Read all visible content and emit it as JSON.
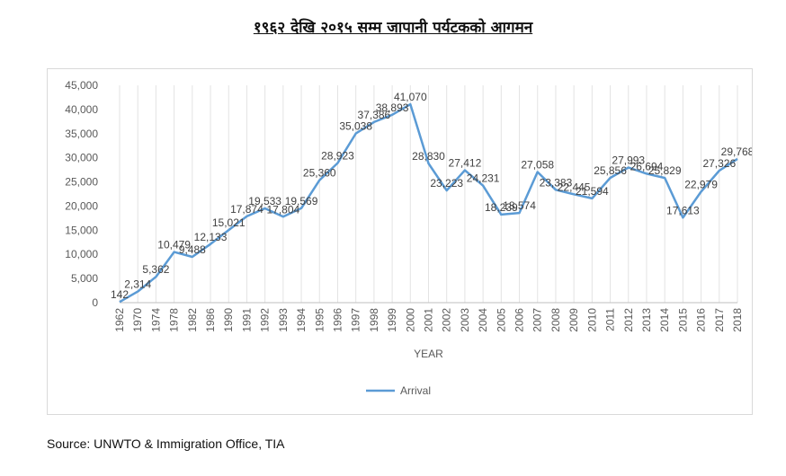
{
  "title": "१९६२ देखि २०१५ सम्म  जापानी पर्यटकको  आगमन",
  "source": "Source: UNWTO & Immigration Office, TIA",
  "chart_data": {
    "type": "line",
    "title": "",
    "xlabel": "YEAR",
    "ylabel": "",
    "ylim": [
      0,
      45000
    ],
    "yticks": [
      0,
      5000,
      10000,
      15000,
      20000,
      25000,
      30000,
      35000,
      40000,
      45000
    ],
    "ytick_labels": [
      "0",
      "5,000",
      "10,000",
      "15,000",
      "20,000",
      "25,000",
      "30,000",
      "35,000",
      "40,000",
      "45,000"
    ],
    "grid": "vertical",
    "legend": "bottom",
    "line_color": "#5b9bd5",
    "categories": [
      "1962",
      "1970",
      "1974",
      "1978",
      "1982",
      "1986",
      "1990",
      "1991",
      "1992",
      "1993",
      "1994",
      "1995",
      "1996",
      "1997",
      "1998",
      "1999",
      "2000",
      "2001",
      "2002",
      "2003",
      "2004",
      "2005",
      "2006",
      "2007",
      "2008",
      "2009",
      "2010",
      "2011",
      "2012",
      "2013",
      "2014",
      "2015",
      "2016",
      "2017",
      "2018"
    ],
    "series": [
      {
        "name": "Arrival",
        "values": [
          142,
          2314,
          5362,
          10479,
          9488,
          12133,
          15021,
          17874,
          19533,
          17804,
          19569,
          25360,
          28923,
          35038,
          37386,
          38893,
          41070,
          28830,
          23223,
          27412,
          24231,
          18239,
          18574,
          27058,
          23383,
          22445,
          21594,
          25856,
          27993,
          26694,
          25829,
          17613,
          22979,
          27326,
          29768
        ],
        "labels": [
          "142",
          "2,314",
          "5,362",
          "10,479",
          "9,488",
          "12,133",
          "15,021",
          "17,874",
          "19,533",
          "17,804",
          "19,569",
          "25,360",
          "28,923",
          "35,038",
          "37,386",
          "38,893",
          "41,070",
          "28,830",
          "23,223",
          "27,412",
          "24,231",
          "18,239",
          "18,574",
          "27,058",
          "23,383",
          "22,445",
          "21,594",
          "25,856",
          "27,993",
          "26,694",
          "25,829",
          "17,613",
          "22,979",
          "27,326",
          "29,768"
        ]
      }
    ]
  }
}
